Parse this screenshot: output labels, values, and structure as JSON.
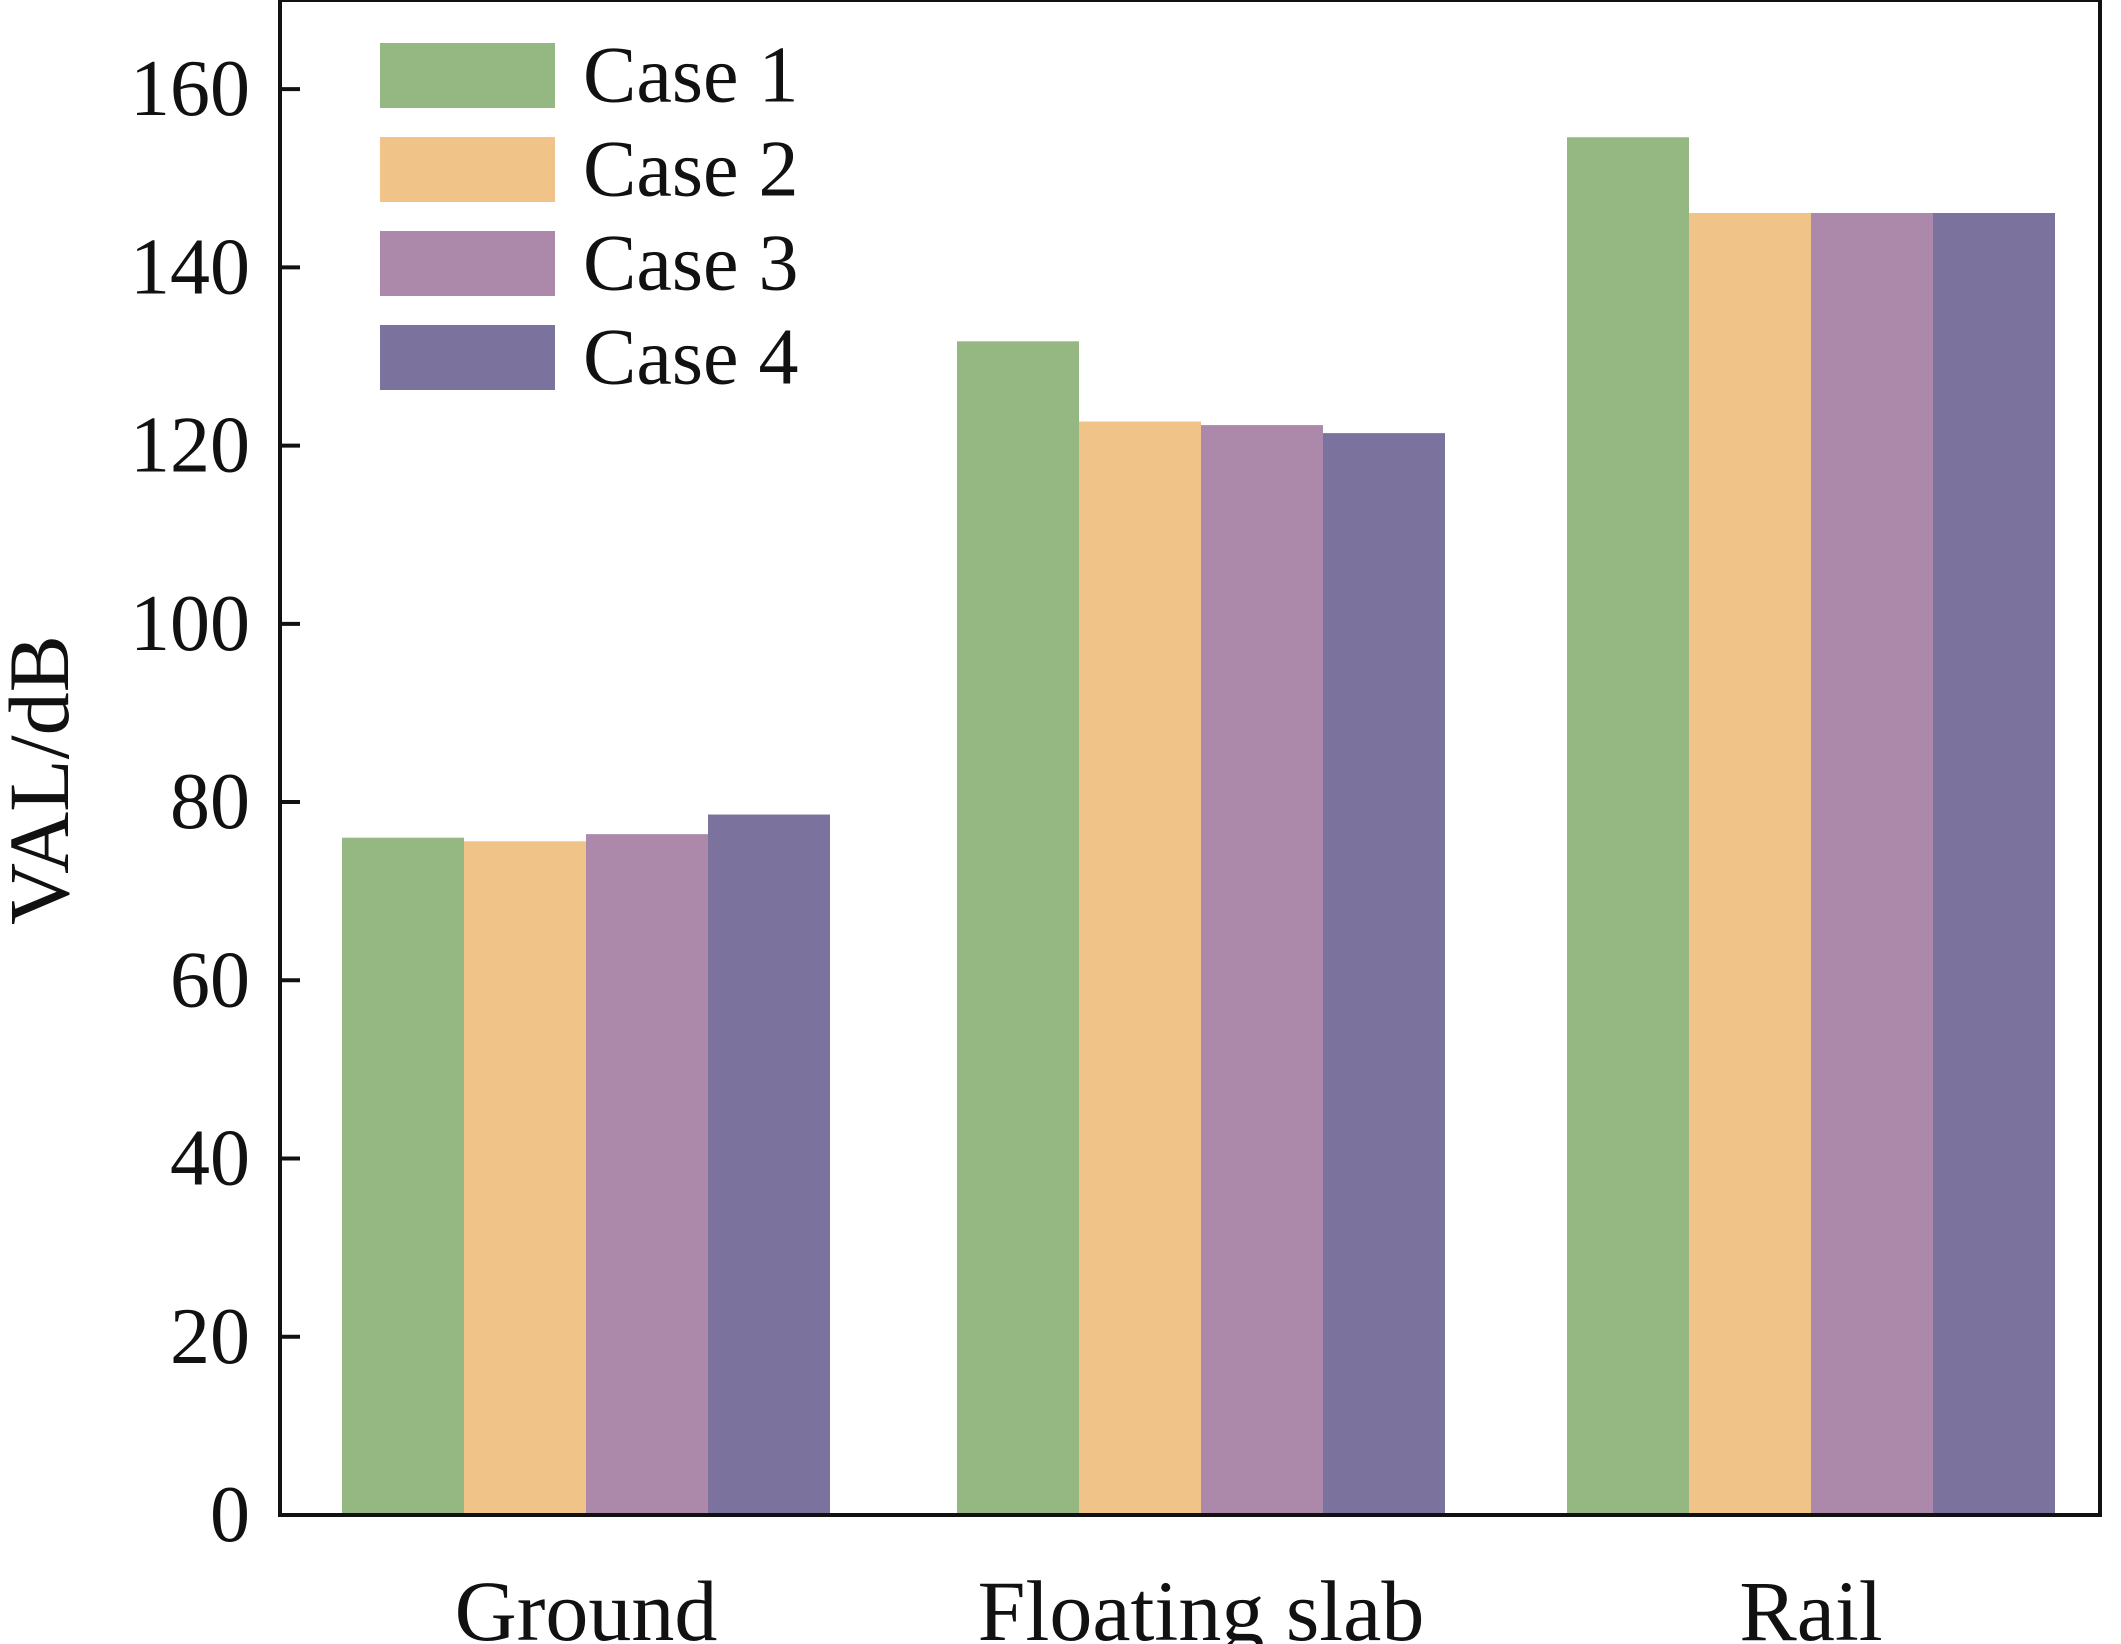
{
  "chart_data": {
    "type": "bar",
    "title": "",
    "xlabel": "",
    "ylabel": "VAL/dB",
    "ylim": [
      0,
      170
    ],
    "yticks": [
      0,
      20,
      40,
      60,
      80,
      100,
      120,
      140,
      160
    ],
    "categories": [
      "Ground",
      "Floating slab",
      "Rail"
    ],
    "series": [
      {
        "name": "Case 1",
        "color": "#95b882",
        "values": [
          76,
          131.7,
          154.6
        ]
      },
      {
        "name": "Case 2",
        "color": "#f0c389",
        "values": [
          75.6,
          122.7,
          146.1
        ]
      },
      {
        "name": "Case 3",
        "color": "#ac89aa",
        "values": [
          76.4,
          122.3,
          146.1
        ]
      },
      {
        "name": "Case 4",
        "color": "#7b729d",
        "values": [
          78.6,
          121.4,
          146.1
        ]
      }
    ],
    "legend_position": "top-left",
    "grid": false
  }
}
